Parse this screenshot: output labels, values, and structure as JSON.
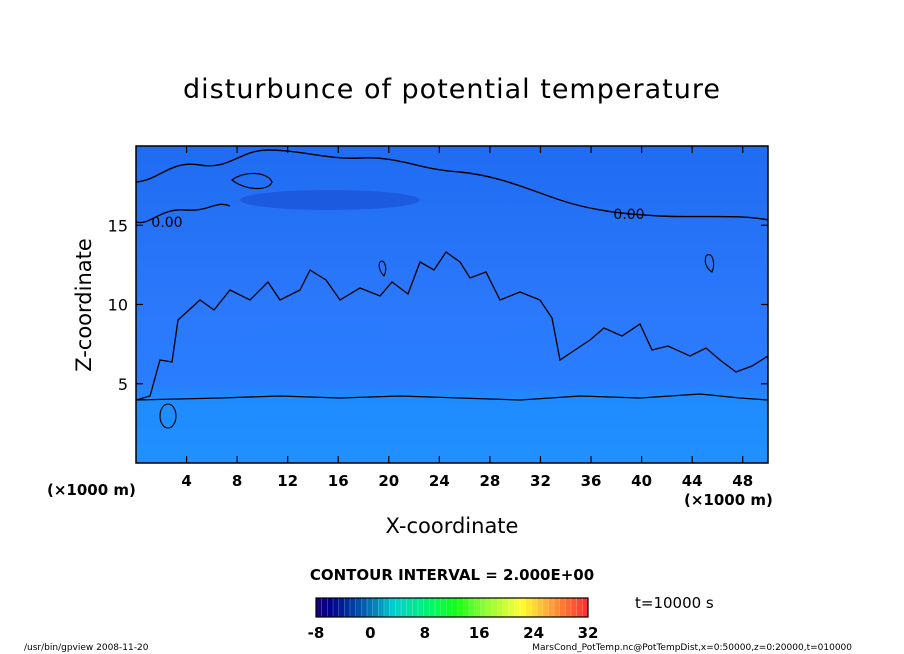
{
  "chart_data": {
    "type": "heatmap",
    "title": "disturbunce of potential temperature",
    "xlabel": "X-coordinate",
    "ylabel": "Z-coordinate",
    "x_unit": "(×1000 m)",
    "x_unit_bottom": "(×1000 m)",
    "xlim": [
      0,
      50
    ],
    "ylim": [
      0,
      20
    ],
    "x_ticks": [
      "4",
      "8",
      "12",
      "16",
      "20",
      "24",
      "28",
      "32",
      "36",
      "40",
      "44",
      "48"
    ],
    "y_ticks": [
      "5",
      "10",
      "15"
    ],
    "contour_labels": [
      "0.00",
      "0.00"
    ],
    "contour_interval": "CONTOUR INTERVAL = 2.000E+00",
    "time_label": "t=10000 s",
    "colorbar": {
      "ticks": [
        "-8",
        "0",
        "8",
        "16",
        "24",
        "32"
      ],
      "range": [
        -8,
        32
      ]
    },
    "grid": false
  },
  "footer": {
    "left": "/usr/bin/gpview  2008-11-20",
    "right": "MarsCond_PotTemp.nc@PotTempDist,x=0:50000,z=0:20000,t=010000"
  },
  "colors": {
    "field_upper": "#1d6ef0",
    "field_middle": "#2b7bff",
    "field_lower": "#1f8cff",
    "field_deep": "#1c5fe6",
    "contour": "#000000"
  }
}
